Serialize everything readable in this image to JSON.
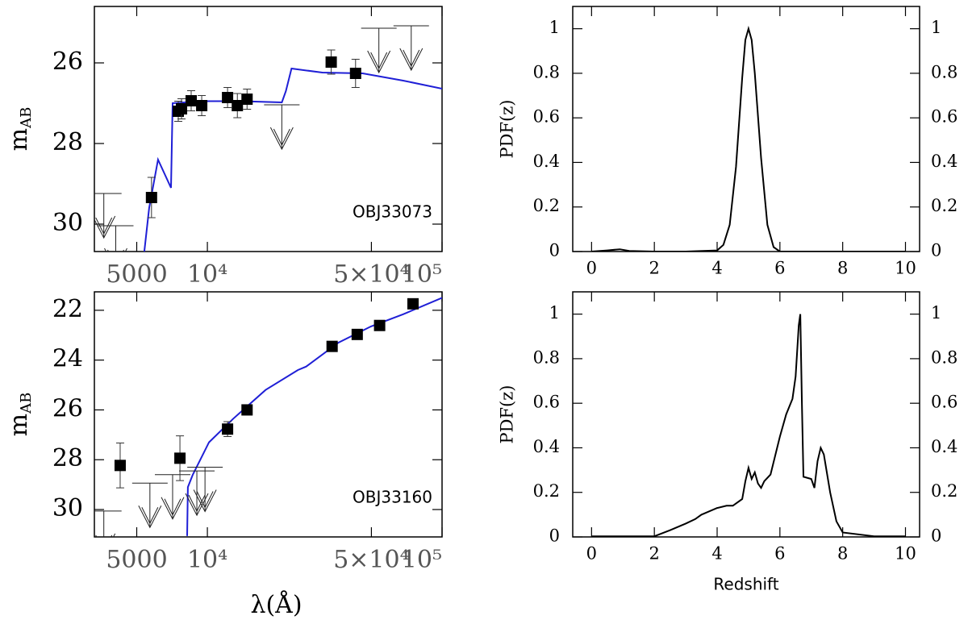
{
  "chart_data": [
    {
      "type": "sed",
      "label": "OBJ33073",
      "ylabel": "m",
      "ylabel_subscript": "AB",
      "xscale": "log",
      "xlim": [
        3300,
        100000
      ],
      "ylim": [
        30.68,
        24.6
      ],
      "xticks": [
        5000,
        {
          "value": 10000,
          "label": "10⁴"
        },
        {
          "value": 50000,
          "label": "5×10⁴"
        },
        {
          "value": 100000,
          "label": "10⁵"
        }
      ],
      "yticks": [
        26,
        28,
        30
      ],
      "model": {
        "color": "#1f1fd6",
        "x": [
          5380,
          5650,
          6160,
          7000,
          7110,
          9380,
          13960,
          20760,
          21600,
          22840,
          30900,
          45900,
          68300,
          100000
        ],
        "y": [
          30.7,
          29.6,
          28.4,
          29.1,
          27.0,
          26.95,
          26.95,
          26.98,
          26.7,
          26.14,
          26.24,
          26.26,
          26.44,
          26.64
        ]
      },
      "photometry": {
        "x": [
          5780,
          7516,
          7760,
          8530,
          9460,
          12190,
          13420,
          14760,
          33700,
          42800
        ],
        "y": [
          29.34,
          27.2,
          27.14,
          26.94,
          27.06,
          26.86,
          27.06,
          26.9,
          25.98,
          26.26
        ],
        "yerr": [
          0.5,
          0.25,
          0.25,
          0.25,
          0.25,
          0.25,
          0.3,
          0.25,
          0.3,
          0.35
        ]
      },
      "upper_limits": {
        "x": [
          3620,
          4070,
          20760,
          53800,
          73900
        ],
        "y": [
          29.24,
          30.04,
          27.04,
          25.14,
          25.08
        ]
      }
    },
    {
      "type": "sed",
      "label": "OBJ33160",
      "ylabel": "m",
      "ylabel_subscript": "AB",
      "xlabel": "λ(Å)",
      "xscale": "log",
      "xlim": [
        3300,
        100000
      ],
      "ylim": [
        31.1,
        21.26
      ],
      "xticks": [
        5000,
        {
          "value": 10000,
          "label": "10⁴"
        },
        {
          "value": 50000,
          "label": "5×10⁴"
        },
        {
          "value": 100000,
          "label": "10⁵"
        }
      ],
      "yticks": [
        22,
        24,
        26,
        28,
        30
      ],
      "model": {
        "color": "#1f1fd6",
        "x": [
          8200,
          8260,
          8670,
          10160,
          12890,
          17700,
          24300,
          26350,
          36200,
          49800,
          68300,
          100000
        ],
        "y": [
          31.06,
          29.1,
          28.6,
          27.3,
          26.35,
          25.2,
          24.4,
          24.26,
          23.3,
          22.65,
          22.16,
          21.5
        ]
      },
      "photometry": {
        "x": [
          4250,
          7640,
          12190,
          14760,
          34000,
          43500,
          54200,
          75200
        ],
        "y": [
          28.23,
          27.94,
          26.77,
          26.0,
          23.45,
          22.97,
          22.61,
          21.74
        ],
        "yerr": [
          0.9,
          0.9,
          0.3,
          0.2,
          0.15,
          0.15,
          0.2,
          0.2
        ]
      },
      "upper_limits": {
        "x": [
          3620,
          5690,
          7110,
          9020,
          9770
        ],
        "y": [
          30.06,
          28.94,
          28.6,
          28.45,
          28.3
        ]
      }
    },
    {
      "type": "line",
      "ylabel": "PDF(z)",
      "color": "#000000",
      "xlim": [
        -0.6,
        10.45
      ],
      "ylim": [
        0,
        1.1
      ],
      "y2lim": [
        0,
        1.1
      ],
      "xticks": [
        0,
        2,
        4,
        6,
        8,
        10
      ],
      "yticks": [
        0,
        0.2,
        0.4,
        0.6,
        0.8,
        1
      ],
      "y2ticks": [
        0,
        0.2,
        0.4,
        0.6,
        0.8,
        1
      ],
      "x": [
        0,
        0.5,
        0.9,
        1.2,
        2,
        3,
        4,
        4.2,
        4.4,
        4.6,
        4.8,
        4.9,
        5.0,
        5.1,
        5.2,
        5.4,
        5.6,
        5.8,
        6,
        8,
        10
      ],
      "values": [
        0,
        0.005,
        0.01,
        0.003,
        0,
        0,
        0.005,
        0.03,
        0.12,
        0.38,
        0.78,
        0.95,
        1.0,
        0.95,
        0.8,
        0.42,
        0.12,
        0.02,
        0,
        0,
        0
      ]
    },
    {
      "type": "line",
      "ylabel": "PDF(z)",
      "xlabel": "Redshift",
      "color": "#000000",
      "xlim": [
        -0.6,
        10.45
      ],
      "ylim": [
        0,
        1.1
      ],
      "y2lim": [
        0,
        1.1
      ],
      "xticks": [
        0,
        2,
        4,
        6,
        8,
        10
      ],
      "yticks": [
        0,
        0.2,
        0.4,
        0.6,
        0.8,
        1
      ],
      "y2ticks": [
        0,
        0.2,
        0.4,
        0.6,
        0.8,
        1
      ],
      "x": [
        0,
        1,
        2,
        2.5,
        3,
        3.3,
        3.5,
        4,
        4.3,
        4.5,
        4.8,
        4.9,
        5.0,
        5.1,
        5.2,
        5.3,
        5.4,
        5.5,
        5.7,
        6.0,
        6.2,
        6.4,
        6.5,
        6.6,
        6.65,
        6.7,
        6.75,
        7.0,
        7.1,
        7.2,
        7.3,
        7.4,
        7.6,
        7.8,
        8,
        9,
        10
      ],
      "values": [
        0.003,
        0.003,
        0.003,
        0.03,
        0.06,
        0.08,
        0.1,
        0.13,
        0.14,
        0.14,
        0.17,
        0.25,
        0.31,
        0.26,
        0.29,
        0.24,
        0.22,
        0.25,
        0.28,
        0.45,
        0.55,
        0.62,
        0.72,
        0.95,
        1.0,
        0.6,
        0.27,
        0.26,
        0.22,
        0.34,
        0.4,
        0.37,
        0.2,
        0.07,
        0.02,
        0.003,
        0.003
      ]
    }
  ]
}
